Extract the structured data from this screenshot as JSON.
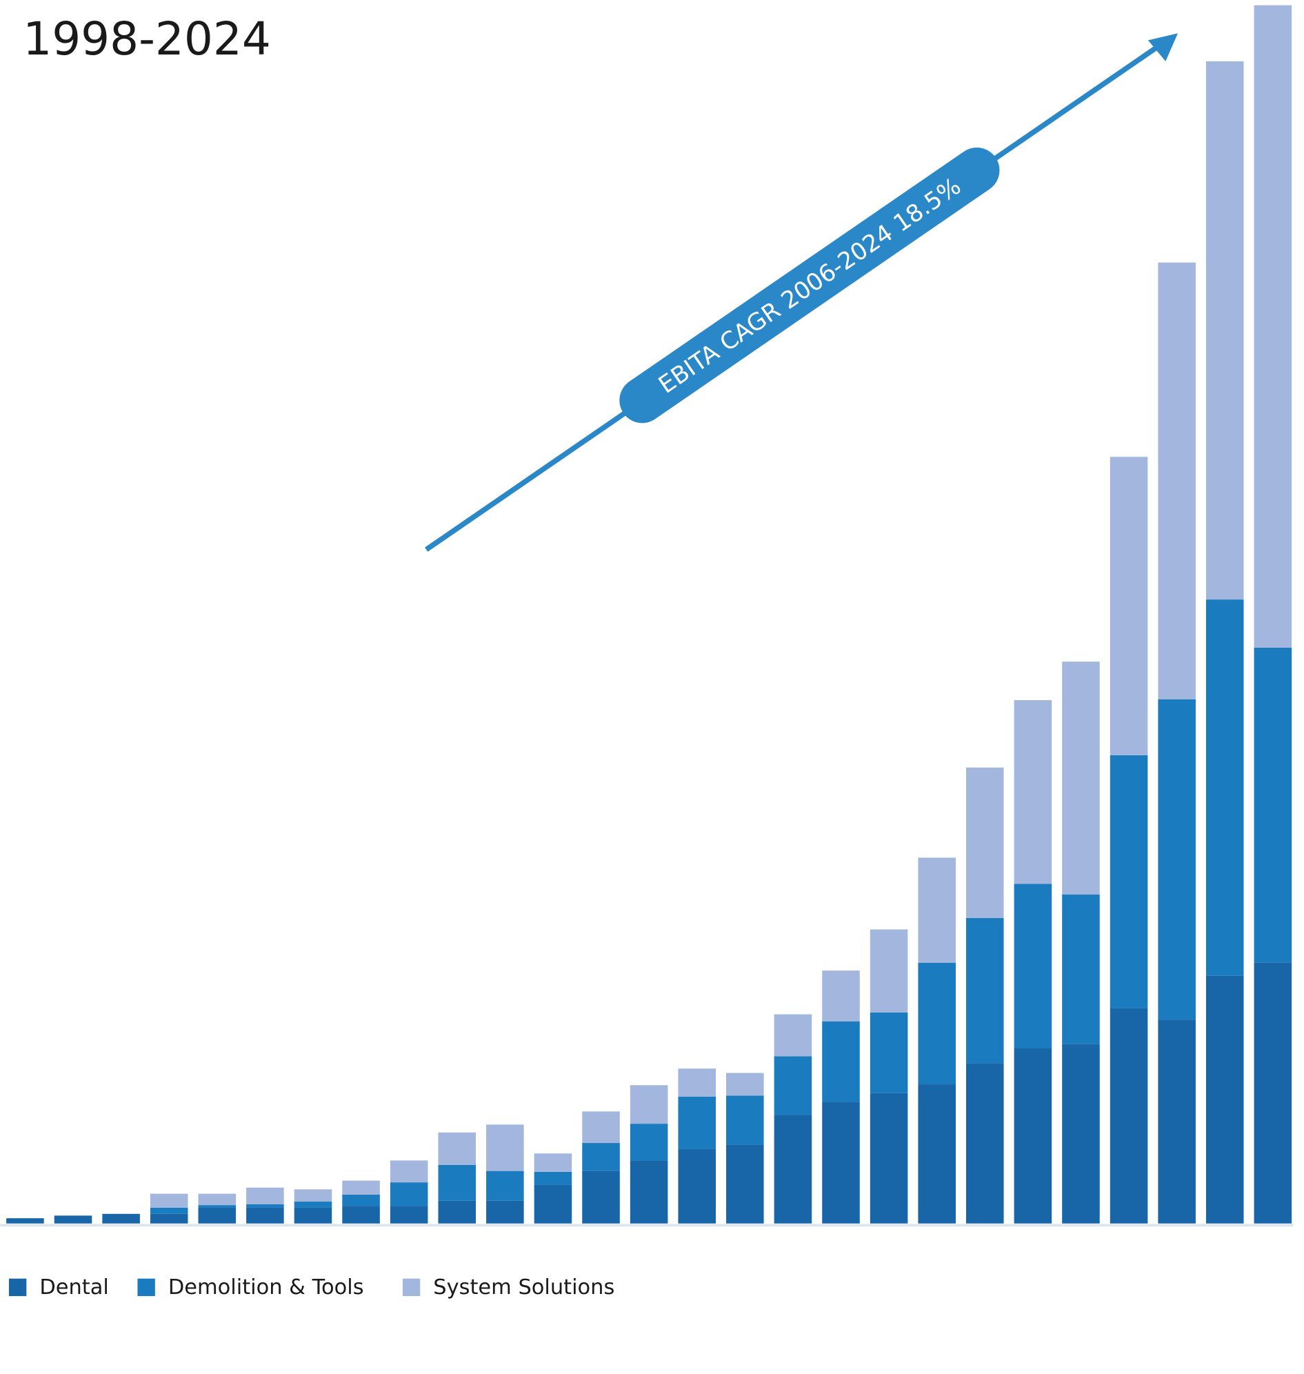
{
  "chart_data": {
    "type": "bar",
    "stacked": true,
    "title": "1998-2024",
    "annotation": "EBITA CAGR 2006-2024 18.5%",
    "categories": [
      null,
      null,
      null,
      null,
      null,
      null,
      null,
      null,
      null,
      null,
      null,
      null,
      null,
      null,
      null,
      null,
      null,
      null,
      null,
      null,
      null,
      null,
      null,
      null,
      null,
      null,
      null
    ],
    "series": [
      {
        "name": "Dental",
        "color": "#1866a8",
        "values": [
          6,
          9,
          11,
          11,
          18,
          18,
          18,
          20,
          20,
          26,
          26,
          44,
          60,
          72,
          85,
          90,
          124,
          139,
          149,
          159,
          183,
          200,
          205,
          246,
          233,
          283,
          298
        ]
      },
      {
        "name": "Demolition & Tools",
        "color": "#1a7bbf",
        "values": [
          0,
          0,
          0,
          7,
          3,
          4,
          7,
          13,
          27,
          41,
          34,
          15,
          32,
          42,
          60,
          56,
          67,
          92,
          92,
          139,
          166,
          188,
          171,
          289,
          366,
          430,
          360
        ]
      },
      {
        "name": "System Solutions",
        "color": "#a3b7de",
        "values": [
          0,
          0,
          0,
          16,
          13,
          19,
          14,
          16,
          25,
          37,
          53,
          21,
          36,
          44,
          32,
          26,
          48,
          58,
          95,
          120,
          172,
          210,
          266,
          341,
          499,
          615,
          734
        ]
      }
    ],
    "ylim": [
      0,
      1398
    ]
  }
}
